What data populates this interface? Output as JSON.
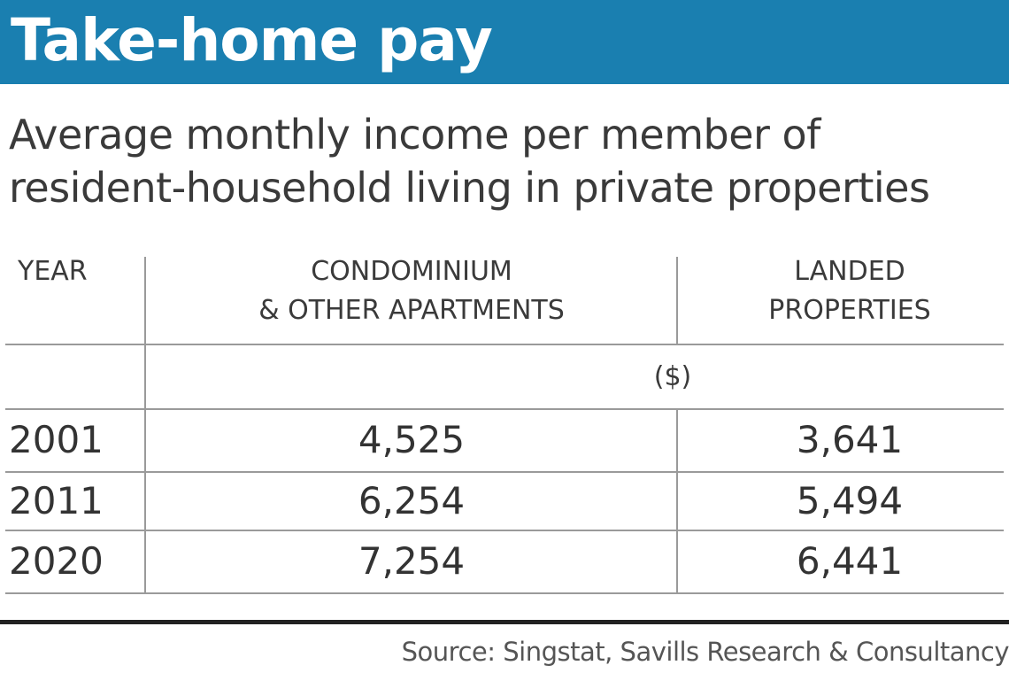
{
  "title": "Take-home pay",
  "subtitle_lines": [
    "Average monthly income per member of",
    "resident-household living in private properties"
  ],
  "colors": {
    "title_bar": "#1a7fb0",
    "title_text": "#ffffff",
    "rule": "#222222"
  },
  "chart_data": {
    "type": "table",
    "columns": [
      {
        "lines": [
          "YEAR"
        ]
      },
      {
        "lines": [
          "CONDOMINIUM",
          "& OTHER APARTMENTS"
        ]
      },
      {
        "lines": [
          "LANDED",
          "PROPERTIES"
        ]
      }
    ],
    "unit": "($)",
    "rows": [
      {
        "year": "2001",
        "condo": "4,525",
        "landed": "3,641"
      },
      {
        "year": "2011",
        "condo": "6,254",
        "landed": "5,494"
      },
      {
        "year": "2020",
        "condo": "7,254",
        "landed": "6,441"
      }
    ]
  },
  "source": "Source: Singstat, Savills Research & Consultancy"
}
